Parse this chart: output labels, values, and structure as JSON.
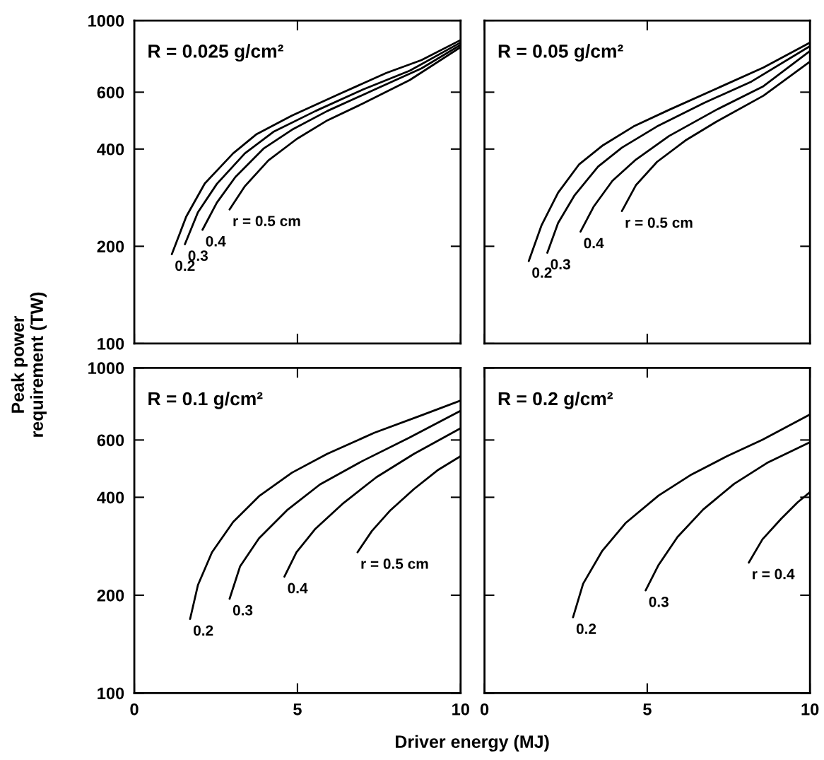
{
  "chart_data": [
    {
      "type": "line",
      "title": "R = 0.025 g/cm²",
      "ylabel": "Peak power\nrequirement (TW)",
      "log": "y",
      "xlim": [
        0,
        10
      ],
      "xticks": [
        0,
        5,
        10
      ],
      "ylim": [
        100,
        1000
      ],
      "yticks": [
        100,
        200,
        400,
        600,
        1000
      ],
      "tick_labels": "y",
      "grid": false,
      "legend": false,
      "marker": "none",
      "line_style": "solid",
      "series": [
        {
          "name": "0.2",
          "color": "#000000",
          "x": [
            1.15,
            1.59,
            2.16,
            3.03,
            3.75,
            4.83,
            6.28,
            7.72,
            8.8,
            10
          ],
          "values": [
            189,
            247,
            313,
            388,
            445,
            508,
            592,
            688,
            754,
            870
          ]
        },
        {
          "name": "0.3",
          "color": "#000000",
          "x": [
            1.55,
            1.95,
            2.53,
            3.39,
            4.26,
            5.56,
            7.0,
            8.44,
            10
          ],
          "values": [
            203,
            255,
            312,
            388,
            452,
            525,
            611,
            699,
            855
          ]
        },
        {
          "name": "0.4",
          "color": "#000000",
          "x": [
            2.09,
            2.53,
            3.1,
            3.97,
            4.83,
            5.92,
            7.36,
            8.8,
            10
          ],
          "values": [
            225,
            273,
            328,
            402,
            459,
            525,
            611,
            711,
            841
          ]
        },
        {
          "name": "r = 0.5 cm",
          "color": "#000000",
          "x": [
            2.92,
            3.39,
            4.11,
            4.98,
            5.92,
            7.0,
            8.44,
            10
          ],
          "values": [
            260,
            307,
            369,
            430,
            491,
            553,
            654,
            827
          ]
        }
      ]
    },
    {
      "type": "line",
      "title": "R = 0.05 g/cm²",
      "log": "y",
      "xlim": [
        0,
        10
      ],
      "xticks": [
        0,
        5,
        10
      ],
      "ylim": [
        100,
        1000
      ],
      "yticks": [
        100,
        200,
        400,
        600,
        1000
      ],
      "tick_labels": false,
      "grid": false,
      "legend": false,
      "marker": "none",
      "line_style": "solid",
      "series": [
        {
          "name": "0.2",
          "color": "#000000",
          "x": [
            1.36,
            1.75,
            2.26,
            2.91,
            3.64,
            4.58,
            5.67,
            7.12,
            8.57,
            10
          ],
          "values": [
            180,
            232,
            293,
            359,
            411,
            470,
            529,
            615,
            715,
            854
          ]
        },
        {
          "name": "0.3",
          "color": "#000000",
          "x": [
            1.93,
            2.26,
            2.77,
            3.49,
            4.22,
            5.3,
            6.75,
            8.2,
            10
          ],
          "values": [
            191,
            236,
            288,
            353,
            404,
            470,
            556,
            647,
            833
          ]
        },
        {
          "name": "0.4",
          "color": "#000000",
          "x": [
            2.95,
            3.35,
            3.93,
            4.65,
            5.67,
            7.12,
            8.57,
            10
          ],
          "values": [
            222,
            265,
            319,
            371,
            439,
            529,
            626,
            805
          ]
        },
        {
          "name": "r = 0.5 cm",
          "color": "#000000",
          "x": [
            4.22,
            4.65,
            5.3,
            6.17,
            7.12,
            8.57,
            10
          ],
          "values": [
            257,
            309,
            365,
            425,
            486,
            585,
            746
          ]
        }
      ]
    },
    {
      "type": "line",
      "title": "R = 0.1 g/cm²",
      "xlabel": "Driver energy (MJ)",
      "log": "y",
      "xlim": [
        0,
        10
      ],
      "xticks": [
        0,
        5,
        10
      ],
      "ylim": [
        100,
        1000
      ],
      "yticks": [
        100,
        200,
        400,
        600,
        1000
      ],
      "grid": false,
      "legend": false,
      "marker": "none",
      "line_style": "solid",
      "series": [
        {
          "name": "0.2",
          "color": "#000000",
          "x": [
            1.71,
            1.95,
            2.38,
            3.03,
            3.82,
            4.83,
            5.91,
            7.35,
            8.79,
            10
          ],
          "values": [
            169,
            215,
            271,
            336,
            403,
            476,
            544,
            631,
            714,
            793
          ]
        },
        {
          "name": "0.3",
          "color": "#000000",
          "x": [
            2.92,
            3.24,
            3.82,
            4.68,
            5.69,
            6.99,
            8.43,
            10
          ],
          "values": [
            195,
            245,
            299,
            365,
            438,
            517,
            610,
            738
          ]
        },
        {
          "name": "0.4",
          "color": "#000000",
          "x": [
            4.6,
            4.97,
            5.55,
            6.41,
            7.42,
            8.57,
            10
          ],
          "values": [
            228,
            271,
            320,
            384,
            461,
            544,
            652
          ]
        },
        {
          "name": "r = 0.5 cm",
          "color": "#000000",
          "x": [
            6.84,
            7.28,
            7.85,
            8.57,
            9.29,
            10
          ],
          "values": [
            271,
            315,
            365,
            424,
            484,
            535
          ]
        }
      ]
    },
    {
      "type": "line",
      "title": "R = 0.2 g/cm²",
      "log": "y",
      "xlim": [
        0,
        10
      ],
      "xticks": [
        0,
        5,
        10
      ],
      "ylim": [
        100,
        1000
      ],
      "yticks": [
        100,
        200,
        400,
        600,
        1000
      ],
      "tick_labels": "x",
      "grid": false,
      "legend": false,
      "marker": "none",
      "line_style": "solid",
      "series": [
        {
          "name": "0.2",
          "color": "#000000",
          "x": [
            2.72,
            3.03,
            3.61,
            4.33,
            5.35,
            6.36,
            7.45,
            8.54,
            10
          ],
          "values": [
            171,
            217,
            273,
            333,
            405,
            470,
            535,
            601,
            719
          ]
        },
        {
          "name": "0.3",
          "color": "#000000",
          "x": [
            4.95,
            5.35,
            5.93,
            6.72,
            7.67,
            8.68,
            10
          ],
          "values": [
            207,
            248,
            302,
            367,
            440,
            510,
            591
          ]
        },
        {
          "name": "r = 0.4",
          "color": "#000000",
          "x": [
            8.12,
            8.54,
            9.12,
            9.62,
            10
          ],
          "values": [
            252,
            297,
            344,
            386,
            415
          ]
        }
      ]
    }
  ]
}
